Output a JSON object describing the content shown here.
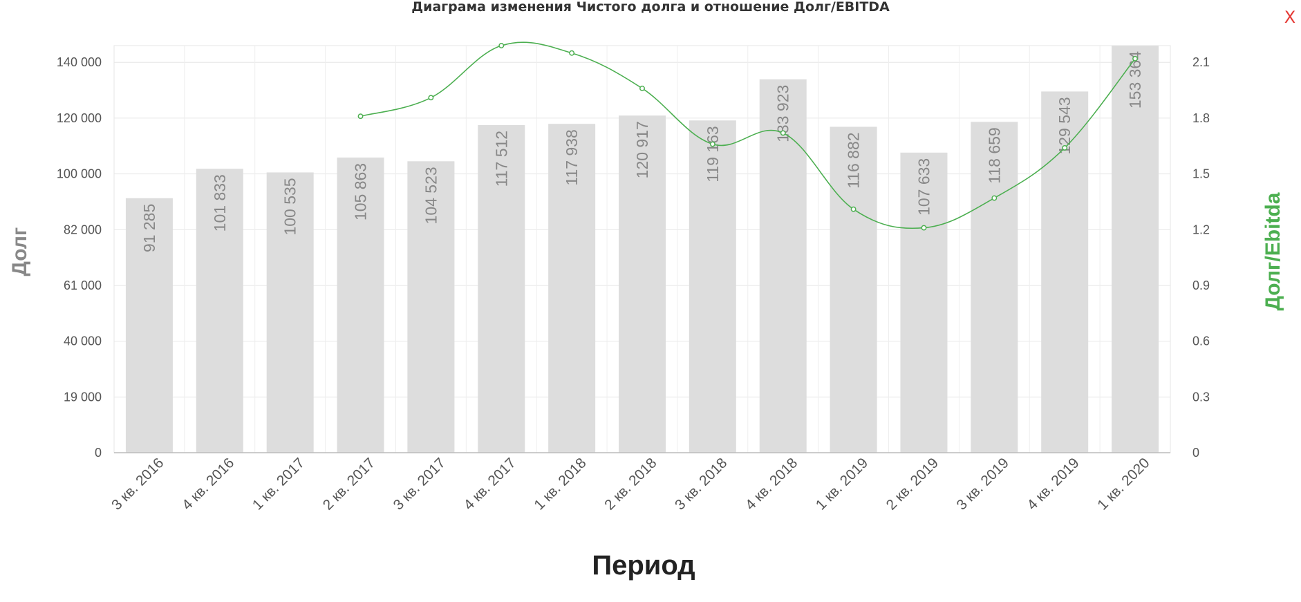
{
  "close_label": "X",
  "chart_data": {
    "type": "bar",
    "title": "Диаграма изменения Чистого долга и отношение Долг/EBITDA",
    "xlabel": "Период",
    "ylabel": "Долг",
    "y2label": "Долг/Ebitda",
    "categories": [
      "3 кв. 2016",
      "4 кв. 2016",
      "1 кв. 2017",
      "2 кв. 2017",
      "3 кв. 2017",
      "4 кв. 2017",
      "1 кв. 2018",
      "2 кв. 2018",
      "3 кв. 2018",
      "4 кв. 2018",
      "1 кв. 2019",
      "2 кв. 2019",
      "3 кв. 2019",
      "4 кв. 2019",
      "1 кв. 2020"
    ],
    "y_ticks": [
      "0",
      "19 000",
      "40 000",
      "61 000",
      "82 000",
      "100 000",
      "120 000",
      "140 000"
    ],
    "y2_ticks": [
      "0",
      "0.3",
      "0.6",
      "0.9",
      "1.2",
      "1.5",
      "1.8",
      "2.1"
    ],
    "ylim": [
      0,
      146000
    ],
    "y2lim": [
      0,
      2.19
    ],
    "series": [
      {
        "name": "Долг",
        "type": "bar",
        "values": [
          91285,
          101833,
          100535,
          105863,
          104523,
          117512,
          117938,
          120917,
          119163,
          133923,
          116882,
          107633,
          118659,
          129543,
          153364
        ],
        "labels": [
          "91 285",
          "101 833",
          "100 535",
          "105 863",
          "104 523",
          "117 512",
          "117 938",
          "120 917",
          "119 163",
          "133 923",
          "116 882",
          "107 633",
          "118 659",
          "129 543",
          "153 364"
        ]
      },
      {
        "name": "Долг/Ebitda",
        "type": "line",
        "values": [
          null,
          null,
          null,
          1.81,
          1.91,
          2.19,
          2.15,
          1.96,
          1.66,
          1.72,
          1.31,
          1.21,
          1.37,
          1.64,
          2.12
        ]
      }
    ],
    "grid": true,
    "colors": {
      "bar": "#dddddd",
      "bar_label": "#888888",
      "line": "#4caf50",
      "axis_text": "#555555",
      "grid": "#e6e6e6",
      "y2label": "#4caf50",
      "ylabel": "#888888"
    }
  }
}
